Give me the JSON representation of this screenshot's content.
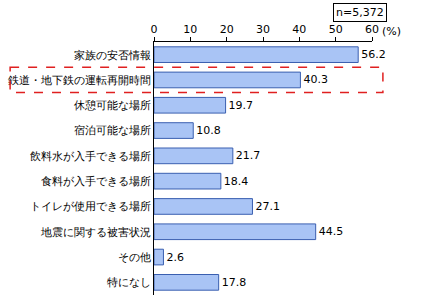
{
  "chart_data": {
    "type": "bar",
    "orientation": "horizontal",
    "categories": [
      "家族の安否情報",
      "鉄道・地下鉄の運転再開時間",
      "休憩可能な場所",
      "宿泊可能な場所",
      "飲料水が入手できる場所",
      "食料が入手できる場所",
      "トイレが使用できる場所",
      "地震に関する被害状況",
      "その他",
      "特になし"
    ],
    "values": [
      56.2,
      40.3,
      19.7,
      10.8,
      21.7,
      18.4,
      27.1,
      44.5,
      2.6,
      17.8
    ],
    "color": "#a9c4f5",
    "x_label": "(%)",
    "annotations": [
      "n=5,372"
    ],
    "xlim": [
      0,
      60
    ],
    "xticks": [
      0,
      10,
      20,
      30,
      40,
      50,
      60
    ],
    "grid": false,
    "data_labels": true
  }
}
